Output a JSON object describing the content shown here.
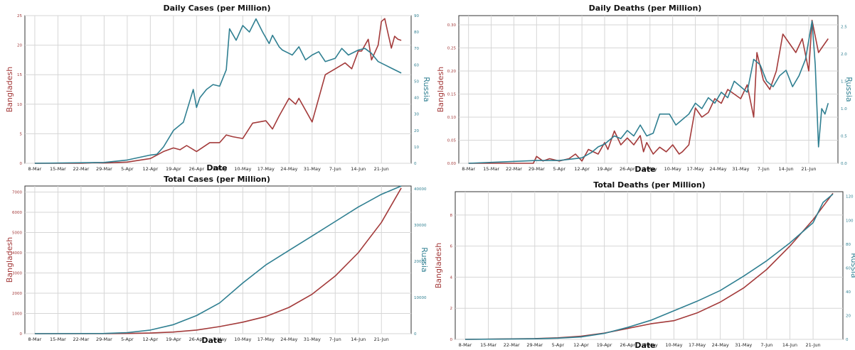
{
  "colors": {
    "bangladesh": "#a33a3a",
    "russia": "#2f7f91",
    "grid": "#d6d6d6",
    "axis": "#333333"
  },
  "chart_data": [
    {
      "type": "line",
      "title": "Daily Cases (per Million)",
      "xlabel": "Date",
      "ylabel_left": "Bangladesh",
      "ylabel_right": "Russia",
      "x_ticks": [
        "8-Mar",
        "15-Mar",
        "22-Mar",
        "29-Mar",
        "5-Apr",
        "12-Apr",
        "19-Apr",
        "26-Apr",
        "3-May",
        "10-May",
        "17-May",
        "24-May",
        "31-May",
        "7-Jun",
        "14-Jun",
        "21-Jun"
      ],
      "left_ticks": [
        "0",
        "5",
        "10",
        "15",
        "20",
        "25"
      ],
      "right_ticks": [
        "0",
        "10",
        "20",
        "30",
        "40",
        "50",
        "60",
        "70",
        "80",
        "90"
      ],
      "ylim_left": [
        0,
        25
      ],
      "ylim_right": [
        0,
        90
      ],
      "series": [
        {
          "name": "Bangladesh",
          "axis": "left",
          "x": [
            0,
            14,
            18,
            21,
            28,
            35,
            37,
            39,
            42,
            44,
            46,
            49,
            53,
            56,
            58,
            60,
            63,
            66,
            70,
            72,
            74,
            77,
            79,
            80,
            84,
            88,
            91,
            94,
            96,
            98,
            99,
            101,
            102,
            104,
            105,
            106,
            107,
            108,
            109,
            110,
            111
          ],
          "values": [
            0,
            0,
            0.1,
            0.05,
            0.2,
            0.8,
            1.4,
            2,
            2.6,
            2.3,
            3,
            2,
            3.5,
            3.5,
            4.8,
            4.5,
            4.2,
            6.8,
            7.2,
            5.8,
            8,
            11,
            10,
            11,
            7,
            15,
            16,
            17,
            16,
            19,
            19,
            21,
            17.5,
            20,
            24,
            24.5,
            22,
            19.5,
            21.5,
            21,
            20.8
          ]
        },
        {
          "name": "Russia",
          "axis": "right",
          "x": [
            0,
            21,
            28,
            35,
            37,
            39,
            42,
            45,
            48,
            49,
            50,
            52,
            54,
            56,
            58,
            59,
            61,
            63,
            65,
            67,
            69,
            71,
            72,
            74,
            75,
            77,
            78,
            80,
            82,
            84,
            86,
            88,
            91,
            93,
            95,
            98,
            100,
            102,
            104,
            106,
            108,
            111
          ],
          "values": [
            0,
            0.5,
            2,
            5,
            5.5,
            10,
            20,
            25,
            45,
            34,
            40,
            45,
            48,
            47,
            57,
            82,
            75,
            84,
            80,
            88,
            80,
            73,
            78,
            71,
            69,
            67,
            66,
            71,
            63,
            66,
            68,
            62,
            64,
            70,
            66,
            69,
            70,
            67,
            62,
            60,
            58,
            55
          ]
        }
      ]
    },
    {
      "type": "line",
      "title": "Daily Deaths (per Million)",
      "xlabel": "Date",
      "ylabel_left": "Bangladesh",
      "ylabel_right": "Russia",
      "x_ticks": [
        "8-Mar",
        "15-Mar",
        "22-Mar",
        "29-Mar",
        "5-Apr",
        "12-Apr",
        "19-Apr",
        "26-Apr",
        "3-May",
        "10-May",
        "17-May",
        "24-May",
        "31-May",
        "7-Jun",
        "14-Jun",
        "21-Jun"
      ],
      "left_ticks": [
        "0.00",
        "0.05",
        "0.10",
        "0.15",
        "0.20",
        "0.25",
        "0.30"
      ],
      "right_ticks": [
        "0.0",
        "0.5",
        "1.0",
        "1.5",
        "2.0",
        "2.5"
      ],
      "ylim_left": [
        0,
        0.32
      ],
      "ylim_right": [
        0,
        2.7
      ],
      "series": [
        {
          "name": "Bangladesh",
          "axis": "left",
          "x": [
            0,
            20,
            21,
            23,
            25,
            28,
            31,
            33,
            35,
            37,
            40,
            42,
            43,
            45,
            47,
            49,
            51,
            53,
            54,
            55,
            57,
            59,
            61,
            63,
            65,
            66,
            68,
            70,
            72,
            74,
            76,
            78,
            80,
            82,
            84,
            86,
            88,
            89,
            91,
            93,
            95,
            97,
            99,
            101,
            103,
            105,
            106,
            108,
            109,
            111
          ],
          "values": [
            0,
            0,
            0.015,
            0.005,
            0.01,
            0.005,
            0.01,
            0.02,
            0.005,
            0.03,
            0.02,
            0.045,
            0.03,
            0.07,
            0.04,
            0.055,
            0.04,
            0.06,
            0.025,
            0.045,
            0.02,
            0.035,
            0.025,
            0.04,
            0.02,
            0.025,
            0.04,
            0.12,
            0.1,
            0.11,
            0.14,
            0.13,
            0.16,
            0.15,
            0.14,
            0.17,
            0.1,
            0.24,
            0.18,
            0.16,
            0.2,
            0.28,
            0.26,
            0.24,
            0.27,
            0.2,
            0.31,
            0.24,
            0.25,
            0.27
          ]
        },
        {
          "name": "Russia",
          "axis": "right",
          "x": [
            0,
            21,
            28,
            35,
            38,
            40,
            42,
            45,
            47,
            49,
            51,
            53,
            55,
            57,
            59,
            62,
            64,
            66,
            68,
            70,
            72,
            74,
            76,
            78,
            80,
            82,
            84,
            86,
            88,
            90,
            92,
            94,
            96,
            98,
            100,
            102,
            104,
            106,
            107,
            108,
            109,
            110,
            111
          ],
          "values": [
            0,
            0.05,
            0.05,
            0.1,
            0.2,
            0.3,
            0.35,
            0.5,
            0.45,
            0.6,
            0.5,
            0.7,
            0.5,
            0.55,
            0.9,
            0.9,
            0.7,
            0.8,
            0.9,
            1.1,
            1.0,
            1.2,
            1.1,
            1.3,
            1.2,
            1.5,
            1.4,
            1.3,
            1.9,
            1.8,
            1.5,
            1.4,
            1.6,
            1.7,
            1.4,
            1.6,
            1.9,
            2.6,
            1.8,
            0.3,
            1.0,
            0.9,
            1.1
          ]
        }
      ]
    },
    {
      "type": "line",
      "title": "Total Cases (per Million)",
      "xlabel": "Date",
      "ylabel_left": "Bangladesh",
      "ylabel_right": "Russia",
      "x_ticks": [
        "8-Mar",
        "15-Mar",
        "22-Mar",
        "29-Mar",
        "5-Apr",
        "12-Apr",
        "19-Apr",
        "26-Apr",
        "3-May",
        "10-May",
        "17-May",
        "24-May",
        "31-May",
        "7-Jun",
        "14-Jun",
        "21-Jun"
      ],
      "left_ticks": [
        "0",
        "1000",
        "2000",
        "3000",
        "4000",
        "5000",
        "6000",
        "7000"
      ],
      "right_ticks": [
        "0",
        "10000",
        "20000",
        "30000",
        "40000"
      ],
      "ylim_left": [
        0,
        7300
      ],
      "ylim_right": [
        0,
        40800
      ],
      "series": [
        {
          "name": "Bangladesh",
          "axis": "left",
          "x": [
            0,
            21,
            28,
            35,
            42,
            49,
            56,
            63,
            70,
            77,
            84,
            91,
            98,
            105,
            111
          ],
          "values": [
            0,
            0,
            10,
            30,
            80,
            180,
            350,
            570,
            850,
            1300,
            1950,
            2850,
            4000,
            5500,
            7200
          ]
        },
        {
          "name": "Russia",
          "axis": "right",
          "x": [
            0,
            21,
            28,
            35,
            42,
            49,
            56,
            63,
            70,
            77,
            84,
            91,
            98,
            105,
            111
          ],
          "values": [
            0,
            50,
            300,
            1000,
            2500,
            5000,
            8500,
            14000,
            19000,
            23000,
            27000,
            31000,
            35000,
            38500,
            40800
          ]
        }
      ]
    },
    {
      "type": "line",
      "title": "Total Deaths (per Million)",
      "xlabel": "Date",
      "ylabel_left": "Bangladesh",
      "ylabel_right": "Russia",
      "x_ticks": [
        "8-Mar",
        "15-Mar",
        "22-Mar",
        "29-Mar",
        "5-Apr",
        "12-Apr",
        "19-Apr",
        "26-Apr",
        "3-May",
        "10-May",
        "17-May",
        "24-May",
        "31-May",
        "7-Jun",
        "14-Jun",
        "21-Jun"
      ],
      "left_ticks": [
        "0",
        "2",
        "4",
        "6",
        "8"
      ],
      "right_ticks": [
        "0",
        "20",
        "40",
        "60",
        "80",
        "100",
        "120"
      ],
      "ylim_left": [
        0,
        9.5
      ],
      "ylim_right": [
        0,
        124
      ],
      "series": [
        {
          "name": "Bangladesh",
          "axis": "left",
          "x": [
            0,
            21,
            28,
            35,
            42,
            49,
            56,
            63,
            70,
            77,
            84,
            91,
            98,
            105,
            111
          ],
          "values": [
            0,
            0.05,
            0.1,
            0.2,
            0.4,
            0.7,
            1.0,
            1.2,
            1.7,
            2.4,
            3.3,
            4.5,
            6.0,
            7.7,
            9.4
          ]
        },
        {
          "name": "Russia",
          "axis": "right",
          "x": [
            0,
            21,
            28,
            35,
            42,
            49,
            56,
            63,
            70,
            77,
            84,
            91,
            98,
            105,
            108,
            111
          ],
          "values": [
            0,
            0.5,
            1,
            2,
            5,
            10,
            16,
            24,
            32,
            41,
            53,
            66,
            81,
            98,
            115,
            122
          ]
        }
      ]
    }
  ]
}
